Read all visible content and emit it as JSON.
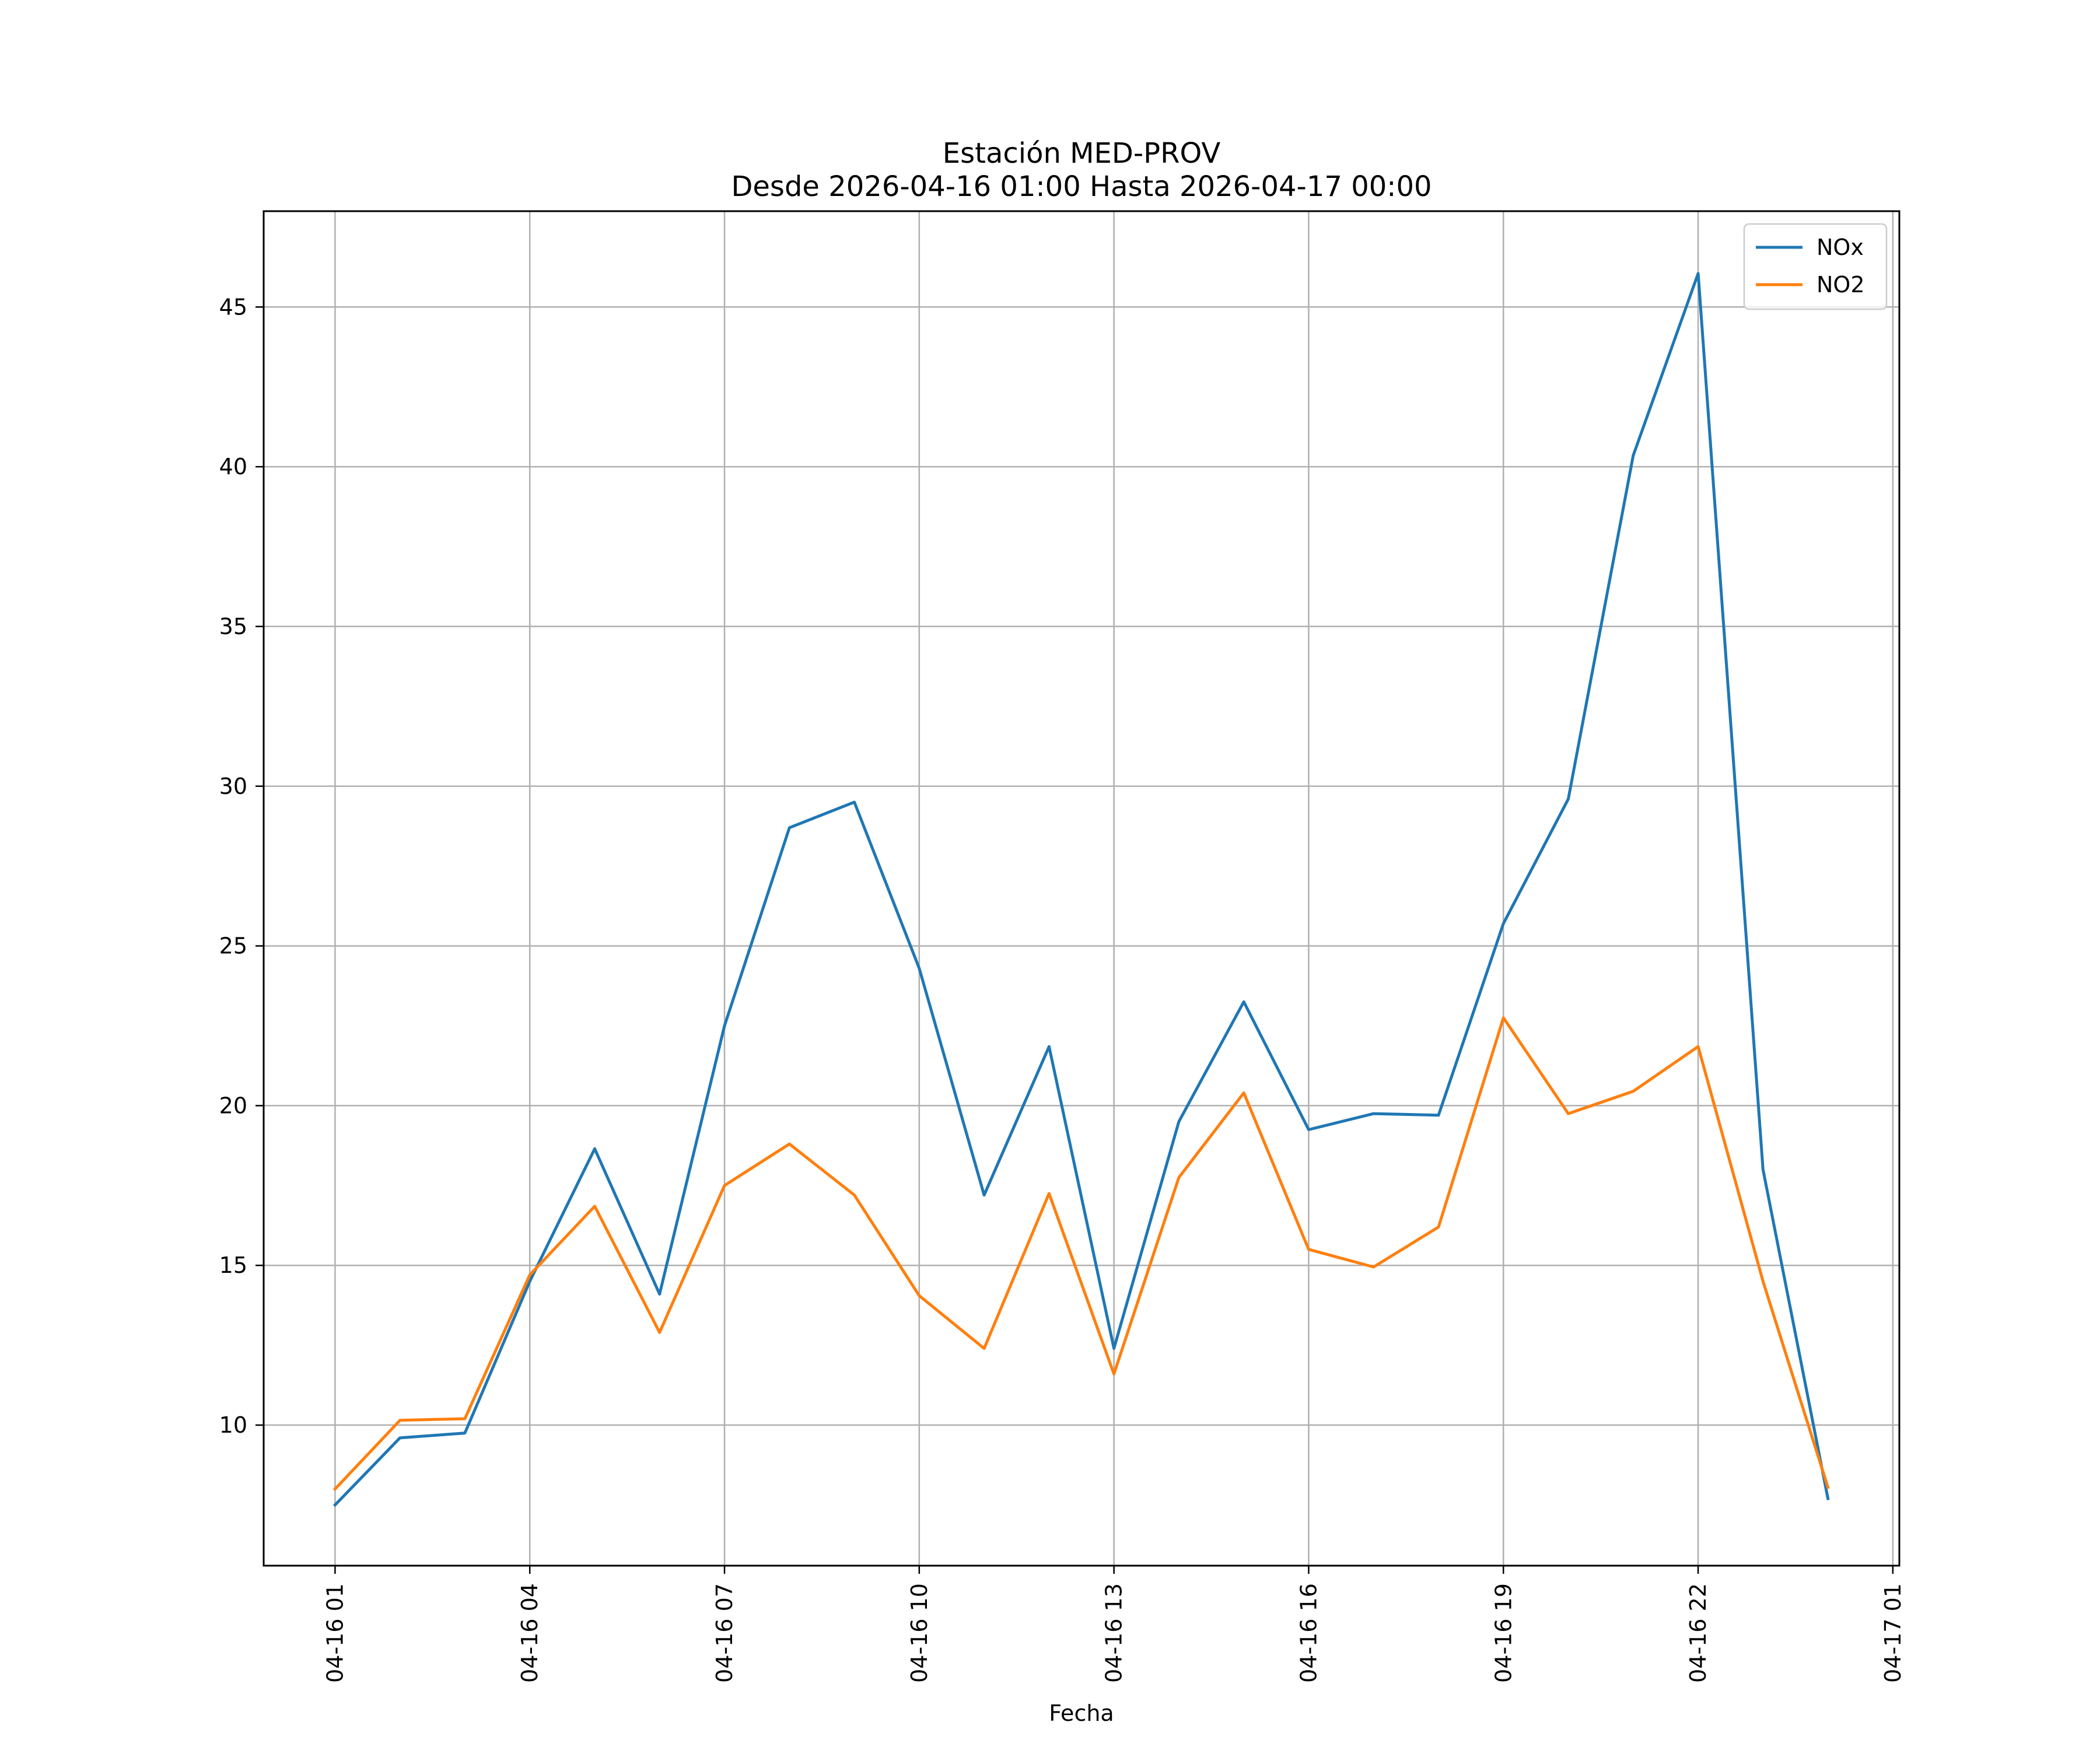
{
  "chart_data": {
    "type": "line",
    "title": "Estación MED-PROV",
    "subtitle": "Desde 2026-04-16 01:00 Hasta 2026-04-17 00:00",
    "xlabel": "Fecha",
    "ylabel": "",
    "x": [
      "04-16 01:00",
      "04-16 02:00",
      "04-16 03:00",
      "04-16 04:00",
      "04-16 05:00",
      "04-16 06:00",
      "04-16 07:00",
      "04-16 08:00",
      "04-16 09:00",
      "04-16 10:00",
      "04-16 11:00",
      "04-16 12:00",
      "04-16 13:00",
      "04-16 14:00",
      "04-16 15:00",
      "04-16 16:00",
      "04-16 17:00",
      "04-16 18:00",
      "04-16 19:00",
      "04-16 20:00",
      "04-16 21:00",
      "04-16 22:00",
      "04-16 23:00",
      "04-17 00:00"
    ],
    "x_hours": [
      1,
      2,
      3,
      4,
      5,
      6,
      7,
      8,
      9,
      10,
      11,
      12,
      13,
      14,
      15,
      16,
      17,
      18,
      19,
      20,
      21,
      22,
      23,
      24
    ],
    "xlim": [
      -0.1,
      25.1
    ],
    "x_ticks": [
      1,
      4,
      7,
      10,
      13,
      16,
      19,
      22,
      25
    ],
    "x_tick_labels": [
      "04-16 01",
      "04-16 04",
      "04-16 07",
      "04-16 10",
      "04-16 13",
      "04-16 16",
      "04-16 19",
      "04-16 22",
      "04-17 01"
    ],
    "ylim": [
      5.6,
      48.0
    ],
    "y_ticks": [
      10,
      15,
      20,
      25,
      30,
      35,
      40,
      45
    ],
    "y_tick_labels": [
      "10",
      "15",
      "20",
      "25",
      "30",
      "35",
      "40",
      "45"
    ],
    "grid": true,
    "legend_position": "top-right",
    "series": [
      {
        "name": "NOx",
        "color": "#1f77b4",
        "values": [
          7.5,
          9.6,
          9.75,
          14.5,
          18.65,
          14.1,
          22.5,
          28.7,
          29.5,
          24.3,
          17.2,
          21.85,
          12.4,
          19.5,
          23.25,
          19.25,
          19.75,
          19.7,
          25.7,
          29.6,
          40.35,
          46.05,
          18.0,
          7.7
        ]
      },
      {
        "name": "NO2",
        "color": "#ff7f0e",
        "values": [
          8.0,
          10.15,
          10.2,
          14.7,
          16.85,
          12.9,
          17.5,
          18.8,
          17.2,
          14.05,
          12.4,
          17.25,
          11.6,
          17.75,
          20.4,
          15.5,
          14.95,
          16.2,
          22.75,
          19.75,
          20.45,
          21.85,
          14.5,
          8.05
        ]
      }
    ]
  }
}
